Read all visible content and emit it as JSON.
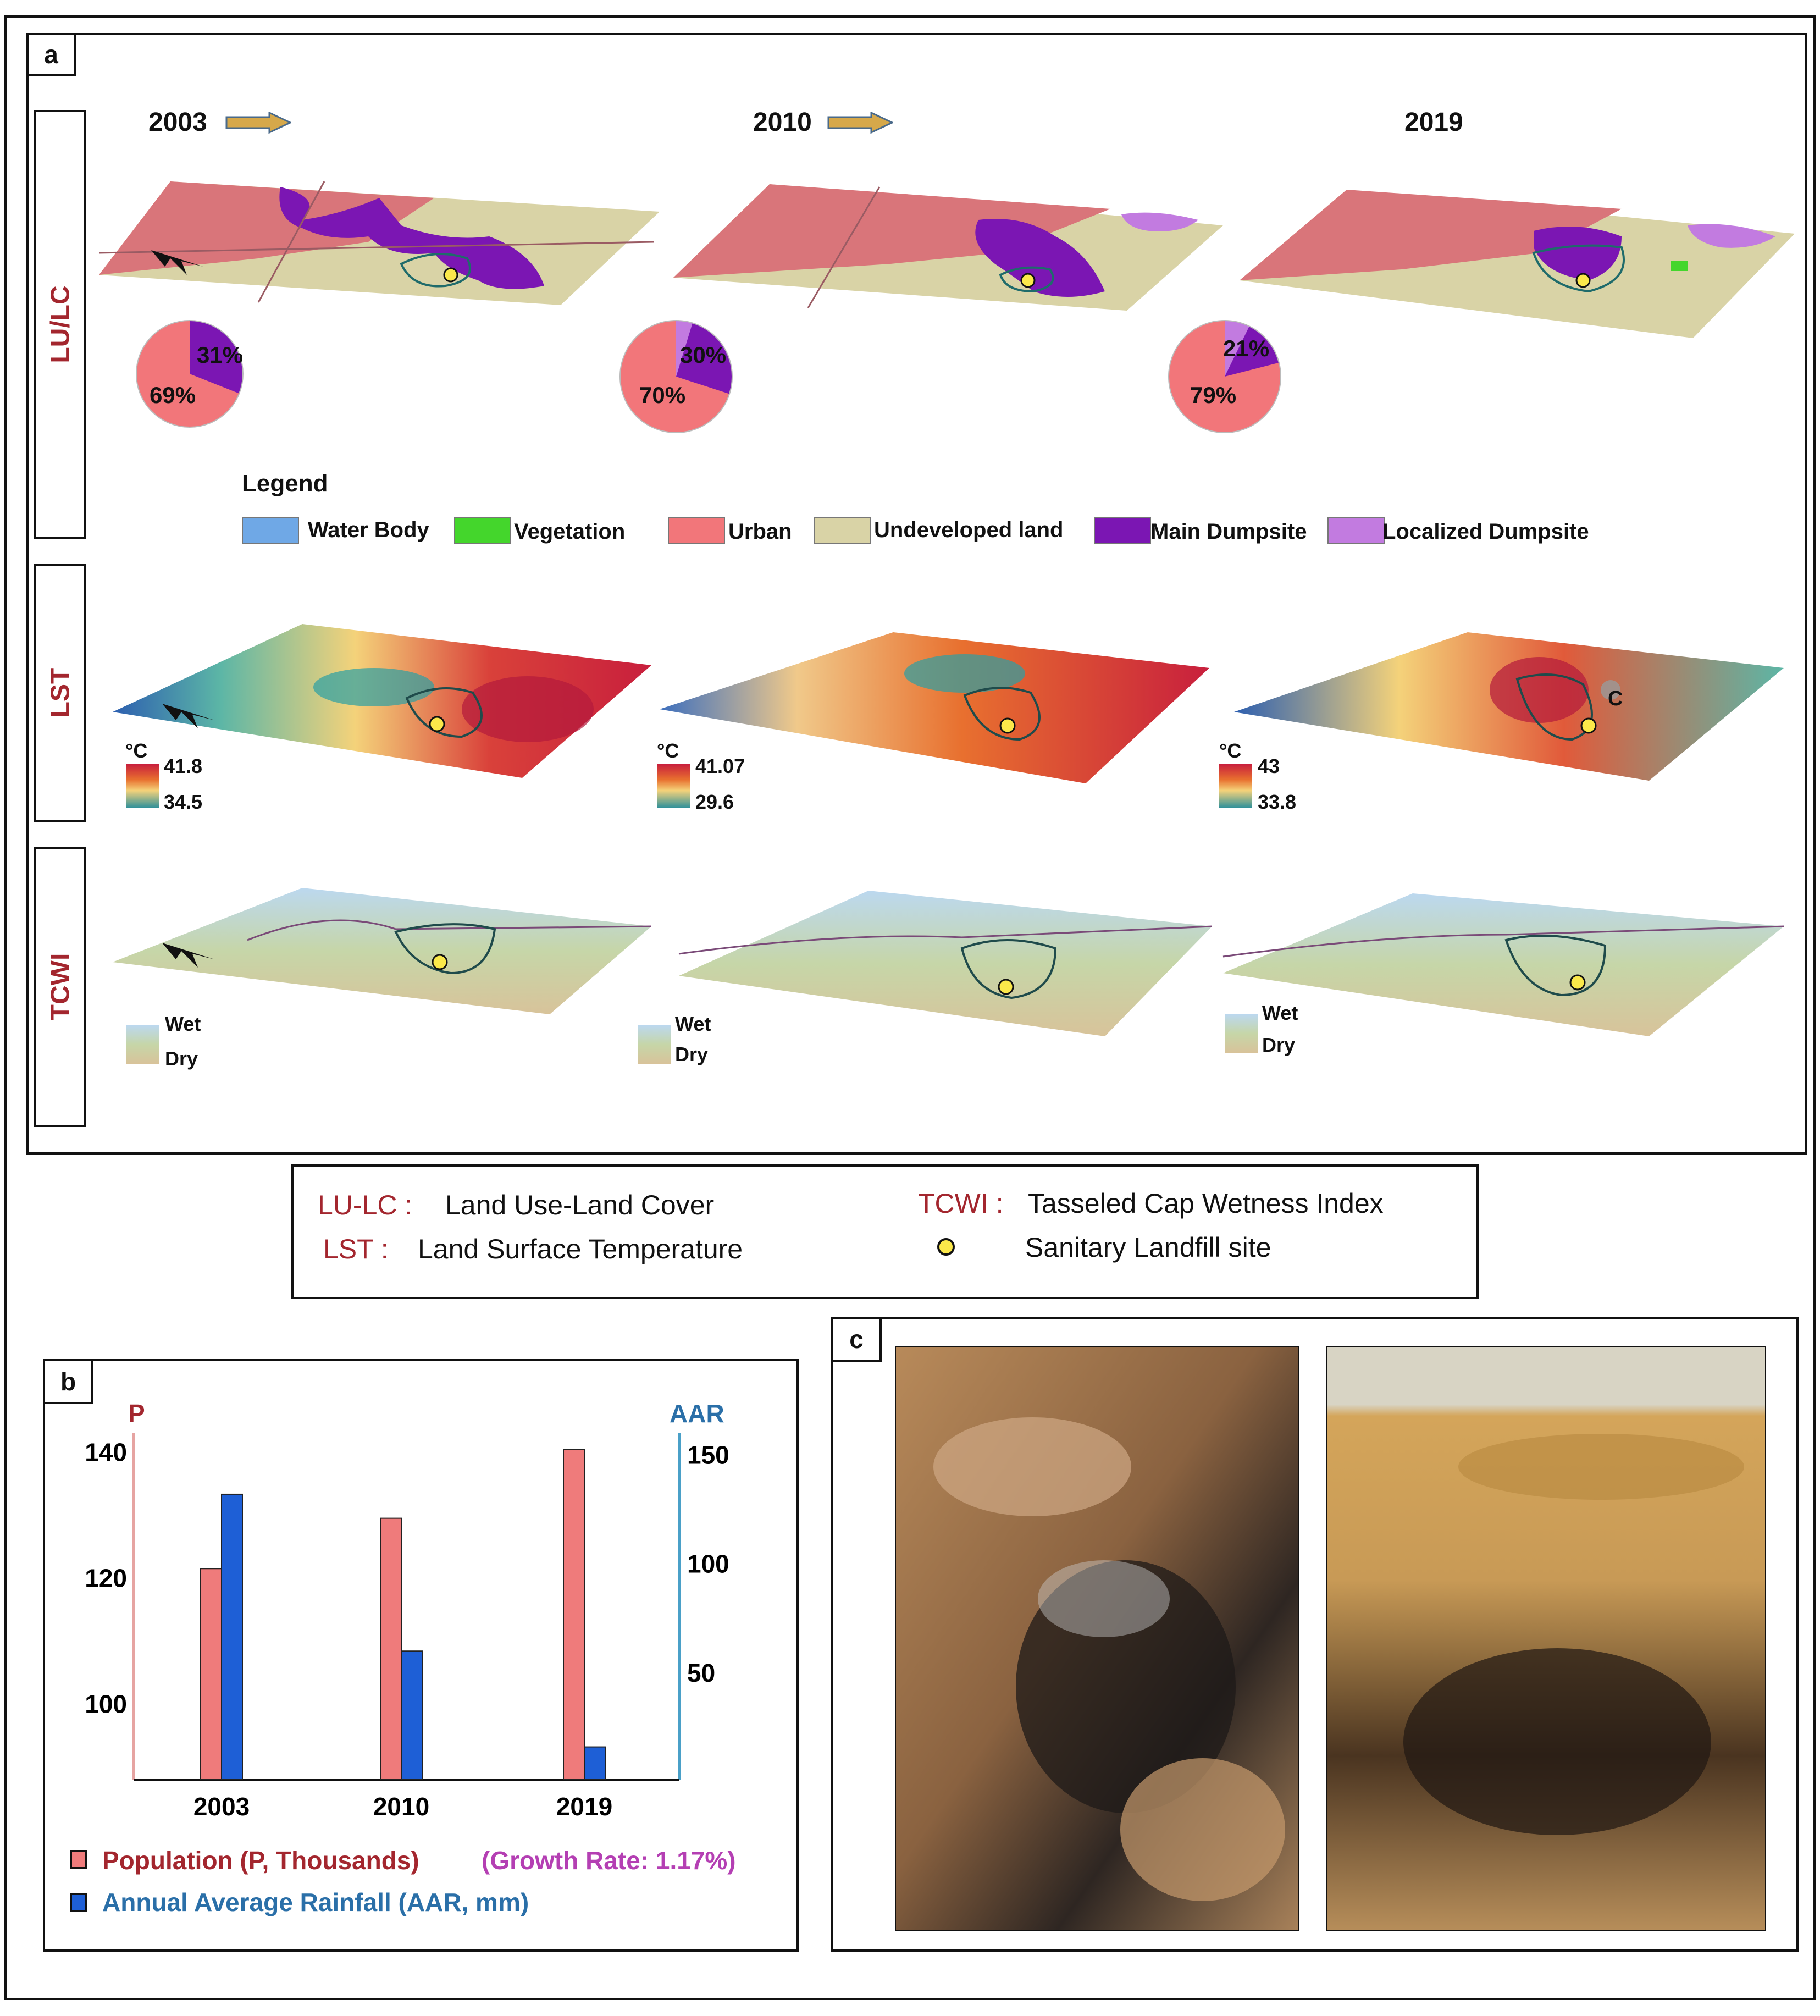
{
  "panel_a": {
    "tag": "a",
    "years": [
      "2003",
      "2010",
      "2019"
    ],
    "row_labels": [
      "LU/LC",
      "LST",
      "TCWI"
    ],
    "pies": [
      {
        "urban_pct": 69,
        "dump_pct": 31,
        "urban_label": "69%",
        "dump_label": "31%"
      },
      {
        "urban_pct": 70,
        "dump_pct": 30,
        "urban_label": "70%",
        "dump_label": "30%"
      },
      {
        "urban_pct": 79,
        "dump_pct": 21,
        "urban_label": "79%",
        "dump_label": "21%"
      }
    ],
    "legend": {
      "title": "Legend",
      "items": [
        {
          "label": "Water Body",
          "color": "#6fa8e6"
        },
        {
          "label": "Vegetation",
          "color": "#44d62c"
        },
        {
          "label": "Urban",
          "color": "#f2767a"
        },
        {
          "label": "Undeveloped land",
          "color": "#d9d3a6"
        },
        {
          "label": "Main Dumpsite",
          "color": "#7b16b3"
        },
        {
          "label": "Localized Dumpsite",
          "color": "#c27be0"
        }
      ]
    },
    "lst_scales": [
      {
        "unit": "°C",
        "max": "41.8",
        "min": "34.5"
      },
      {
        "unit": "°C",
        "max": "41.07",
        "min": "29.6"
      },
      {
        "unit": "°C",
        "max": "43",
        "min": "33.8"
      }
    ],
    "tcwi_scales": [
      {
        "wet": "Wet",
        "dry": "Dry"
      },
      {
        "wet": "Wet",
        "dry": "Dry"
      },
      {
        "wet": "Wet",
        "dry": "Dry"
      }
    ],
    "north_label": "N",
    "photo_marker": "C"
  },
  "definitions": {
    "lulc_key": "LU-LC :",
    "lulc_val": "Land Use-Land Cover",
    "lst_key": "LST :",
    "lst_val": "Land Surface Temperature",
    "tcwi_key": "TCWI :",
    "tcwi_val": "Tasseled Cap Wetness Index",
    "landfill_val": "Sanitary Landfill site"
  },
  "panel_b": {
    "tag": "b"
  },
  "chart_data": {
    "type": "bar",
    "categories": [
      "2003",
      "2010",
      "2019"
    ],
    "series": [
      {
        "name": "Population (P, Thousands)",
        "axis": "left",
        "color": "#ef7b7b",
        "values": [
          121.5,
          129.5,
          140.4
        ]
      },
      {
        "name": "Annual Average Rainfall (AAR, mm)",
        "axis": "right",
        "color": "#1e5fd6",
        "values": [
          132,
          60,
          16
        ]
      }
    ],
    "left_axis": {
      "label": "P",
      "ticks": [
        "100",
        "120",
        "140"
      ],
      "ylim": [
        88,
        143
      ]
    },
    "right_axis": {
      "label": "AAR",
      "ticks": [
        "50",
        "100",
        "150"
      ],
      "ylim": [
        1,
        160
      ]
    },
    "legend_pop": "Population (P, Thousands)",
    "legend_growth": "(Growth Rate: 1.17%)",
    "legend_rain": "Annual Average Rainfall (AAR, mm)"
  },
  "panel_c": {
    "tag": "c"
  }
}
